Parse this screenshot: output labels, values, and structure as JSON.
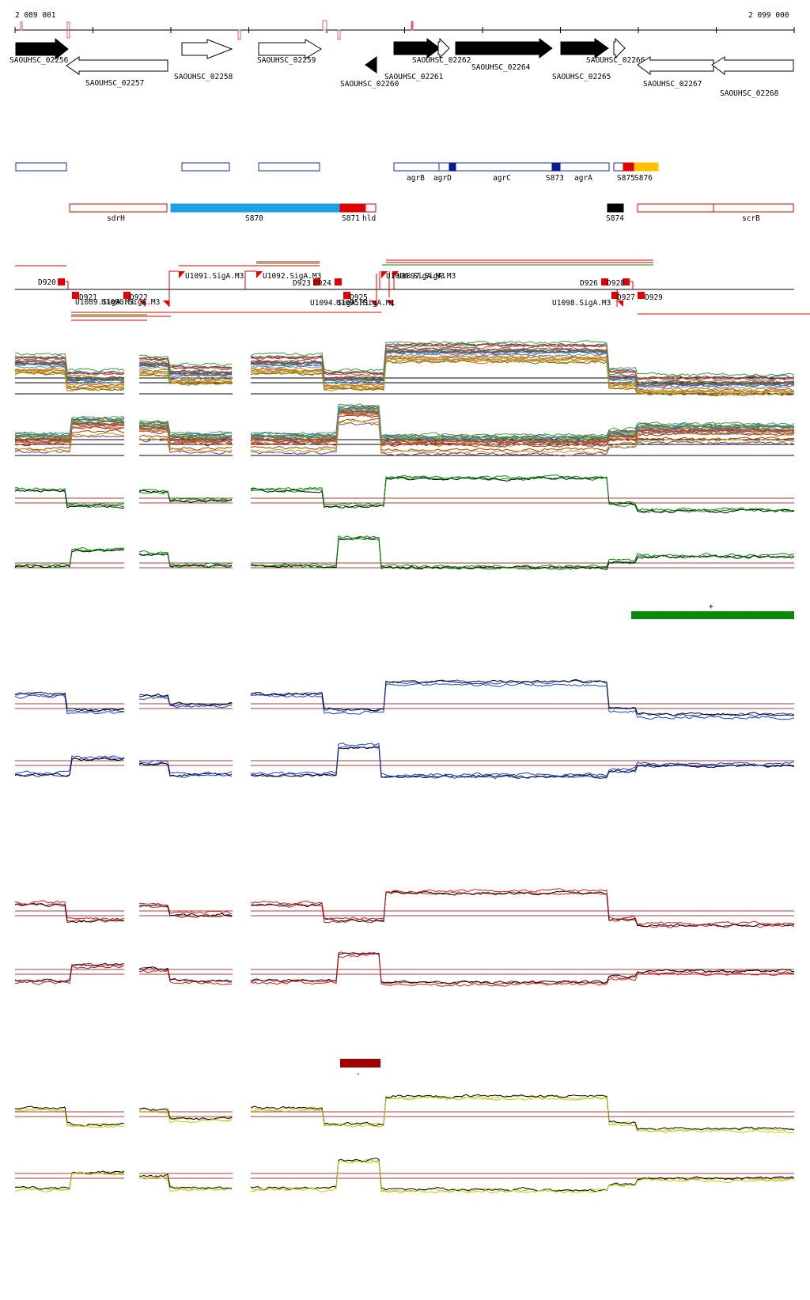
{
  "coordinates": {
    "start": "2 089 001",
    "end": "2 099 000"
  },
  "genes": [
    {
      "name": "SAOUHSC_02256",
      "strand": "+",
      "fill": "black"
    },
    {
      "name": "SAOUHSC_02257",
      "strand": "-",
      "fill": "white"
    },
    {
      "name": "SAOUHSC_02258",
      "strand": "+",
      "fill": "white"
    },
    {
      "name": "SAOUHSC_02259",
      "strand": "+",
      "fill": "white"
    },
    {
      "name": "SAOUHSC_02260",
      "strand": "-",
      "fill": "black"
    },
    {
      "name": "SAOUHSC_02261",
      "strand": "+",
      "fill": "black"
    },
    {
      "name": "SAOUHSC_02262",
      "strand": "+",
      "fill": "white"
    },
    {
      "name": "SAOUHSC_02264",
      "strand": "+",
      "fill": "black"
    },
    {
      "name": "SAOUHSC_02265",
      "strand": "+",
      "fill": "black"
    },
    {
      "name": "SAOUHSC_02266",
      "strand": "+",
      "fill": "white"
    },
    {
      "name": "SAOUHSC_02267",
      "strand": "-",
      "fill": "white"
    },
    {
      "name": "SAOUHSC_02268",
      "strand": "-",
      "fill": "white"
    }
  ],
  "plus_features": [
    "agrB",
    "agrD",
    "agrC",
    "S873",
    "agrA",
    "S875",
    "S876"
  ],
  "minus_features": [
    "sdrH",
    "S870",
    "S871",
    "hld",
    "S874",
    "scrB"
  ],
  "promoters": [
    "D920",
    "D921",
    "D922",
    "U1089.SigA.M3",
    "U1090.SigA.M3",
    "U1091.SigA.M3",
    "U1092.SigA.M3",
    "D923",
    "D924",
    "D925",
    "U1094.SigA.M1",
    "U1095.SigA.M1",
    "U1096.SigA.M3",
    "U1097.SigA.M3",
    "D926",
    "D927",
    "D928",
    "D929",
    "U1098.SigA.M3"
  ],
  "segments": {
    "green": "+",
    "red": "-"
  },
  "colors": {
    "green": "#0a8a0a",
    "blue": "#1f3fc8",
    "red": "#cc1f1f",
    "yellow": "#c8c820",
    "darkred": "#a00000",
    "sigblue": "#1ea0e6",
    "orange": "#ffc000"
  }
}
